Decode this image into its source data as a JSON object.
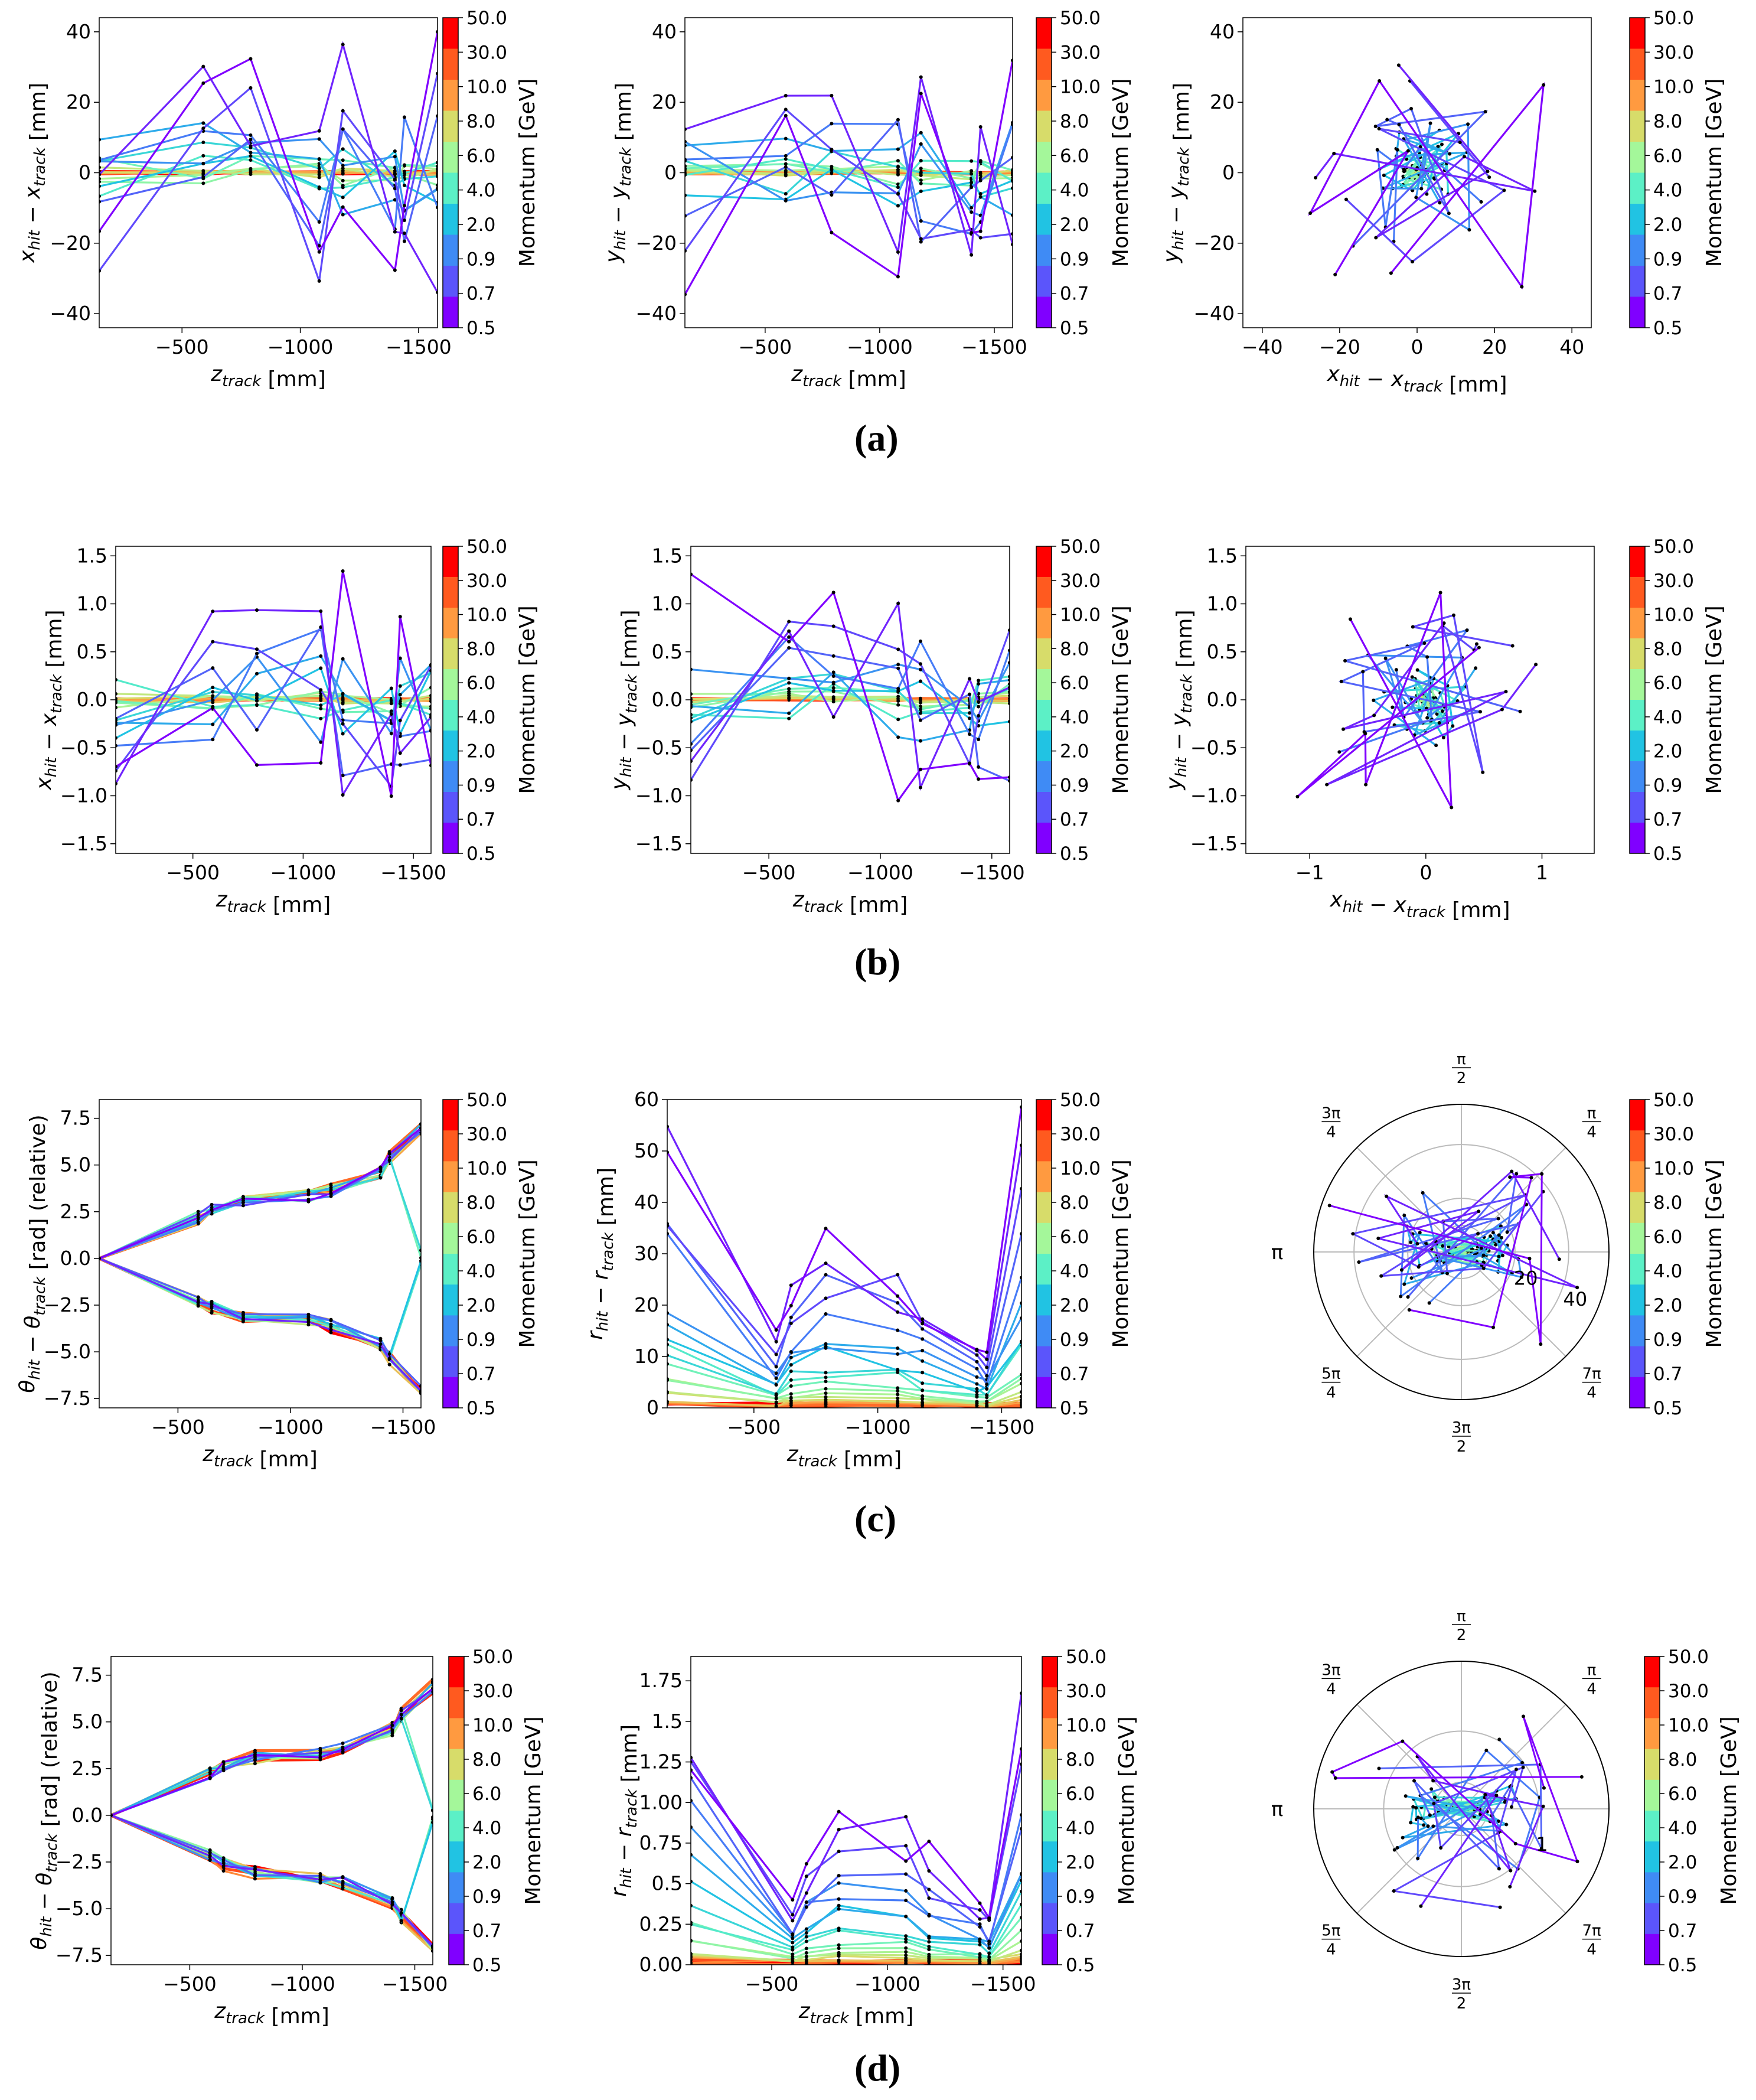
{
  "figure": {
    "rows": [
      {
        "label": "a",
        "label_text": "(a)"
      },
      {
        "label": "b",
        "label_text": "(b)"
      },
      {
        "label": "c",
        "label_text": "(c)"
      },
      {
        "label": "d",
        "label_text": "(d)"
      }
    ]
  },
  "colorbar": {
    "title": "Momentum [GeV]",
    "ticks": [
      "50.0",
      "30.0",
      "10.0",
      "8.0",
      "6.0",
      "4.0",
      "2.0",
      "0.9",
      "0.7",
      "0.5"
    ],
    "colors": [
      "#ff0000",
      "#ff5a1f",
      "#ff9a40",
      "#d7dc6a",
      "#a4f79a",
      "#5cf0c6",
      "#21c3e3",
      "#3f8bf5",
      "#5b55fb",
      "#8000ff"
    ]
  },
  "chart_data": [
    {
      "id": "a1",
      "type": "line",
      "panel": "row-a-left",
      "xlabel": "z_track [mm]",
      "ylabel": "x_hit − x_track [mm]",
      "xlim": [
        -150,
        -1580
      ],
      "ylim": [
        -44,
        44
      ],
      "xticks": [
        -500,
        -1000,
        -1500
      ],
      "yticks": [
        40,
        20,
        0,
        -20,
        -40
      ],
      "z": [
        -150,
        -590,
        -790,
        -1080,
        -1180,
        -1400,
        -1440,
        -1580
      ],
      "amplitude": 42,
      "symmetric": true
    },
    {
      "id": "a2",
      "type": "line",
      "panel": "row-a-middle",
      "xlabel": "z_track [mm]",
      "ylabel": "y_hit − y_track [mm]",
      "xlim": [
        -150,
        -1580
      ],
      "ylim": [
        -44,
        44
      ],
      "xticks": [
        -500,
        -1000,
        -1500
      ],
      "yticks": [
        40,
        20,
        0,
        -20,
        -40
      ],
      "z": [
        -150,
        -590,
        -790,
        -1080,
        -1180,
        -1400,
        -1440,
        -1580
      ],
      "amplitude": 35,
      "symmetric": true
    },
    {
      "id": "a3",
      "type": "scatter-line",
      "panel": "row-a-right",
      "xlabel": "x_hit − x_track [mm]",
      "ylabel": "y_hit − y_track [mm]",
      "xlim": [
        -45,
        45
      ],
      "ylim": [
        -44,
        44
      ],
      "xticks": [
        -40,
        -20,
        0,
        20,
        40
      ],
      "yticks": [
        40,
        20,
        0,
        -20,
        -40
      ],
      "amplitude": 35
    },
    {
      "id": "b1",
      "type": "line",
      "panel": "row-b-left",
      "xlabel": "z_track [mm]",
      "ylabel": "x_hit − x_track [mm]",
      "xlim": [
        -150,
        -1580
      ],
      "ylim": [
        -1.6,
        1.6
      ],
      "xticks": [
        -500,
        -1000,
        -1500
      ],
      "yticks": [
        1.5,
        1.0,
        0.5,
        0.0,
        -0.5,
        -1.0,
        -1.5
      ],
      "z": [
        -150,
        -590,
        -790,
        -1080,
        -1180,
        -1400,
        -1440,
        -1580
      ],
      "amplitude": 1.45,
      "symmetric": true
    },
    {
      "id": "b2",
      "type": "line",
      "panel": "row-b-middle",
      "xlabel": "z_track [mm]",
      "ylabel": "y_hit − y_track [mm]",
      "xlim": [
        -150,
        -1580
      ],
      "ylim": [
        -1.6,
        1.6
      ],
      "xticks": [
        -500,
        -1000,
        -1500
      ],
      "yticks": [
        1.5,
        1.0,
        0.5,
        0.0,
        -0.5,
        -1.0,
        -1.5
      ],
      "z": [
        -150,
        -590,
        -790,
        -1080,
        -1180,
        -1400,
        -1440,
        -1580
      ],
      "amplitude": 1.35,
      "symmetric": true
    },
    {
      "id": "b3",
      "type": "scatter-line",
      "panel": "row-b-right",
      "xlabel": "x_hit − x_track [mm]",
      "ylabel": "y_hit − y_track [mm]",
      "xlim": [
        -1.55,
        1.45
      ],
      "ylim": [
        -1.6,
        1.6
      ],
      "xticks": [
        -1,
        0,
        1
      ],
      "yticks": [
        1.5,
        1.0,
        0.5,
        0.0,
        -0.5,
        -1.0,
        -1.5
      ],
      "amplitude": 1.3
    },
    {
      "id": "c1",
      "type": "line",
      "panel": "row-c-left",
      "xlabel": "z_track [mm]",
      "ylabel": "θ_hit − θ_track [rad] (relative)",
      "xlim": [
        -150,
        -1580
      ],
      "ylim": [
        -8,
        8.5
      ],
      "xticks": [
        -500,
        -1000,
        -1500
      ],
      "yticks": [
        7.5,
        5.0,
        2.5,
        0.0,
        -2.5,
        -5.0,
        -7.5
      ],
      "z": [
        -150,
        -590,
        -650,
        -790,
        -1080,
        -1180,
        -1400,
        -1440,
        -1580
      ],
      "theta": true
    },
    {
      "id": "c2",
      "type": "line",
      "panel": "row-c-middle",
      "xlabel": "z_track [mm]",
      "ylabel": "r_hit − r_track [mm]",
      "xlim": [
        -150,
        -1580
      ],
      "ylim": [
        0,
        60
      ],
      "xticks": [
        -500,
        -1000,
        -1500
      ],
      "yticks": [
        60,
        50,
        40,
        30,
        20,
        10,
        0
      ],
      "z": [
        -150,
        -590,
        -650,
        -790,
        -1080,
        -1180,
        -1400,
        -1440,
        -1580
      ],
      "amplitude": 54
    },
    {
      "id": "c3",
      "type": "polar",
      "panel": "row-c-right",
      "rmax": 55,
      "rticks": [
        "20",
        "40"
      ],
      "angle_labels": [
        "π/2",
        "π/4",
        "3π/4",
        "π",
        "5π/4",
        "3π/2",
        "7π/4"
      ]
    },
    {
      "id": "d1",
      "type": "line",
      "panel": "row-d-left",
      "xlabel": "z_track [mm]",
      "ylabel": "θ_hit − θ_track [rad] (relative)",
      "xlim": [
        -150,
        -1580
      ],
      "ylim": [
        -8,
        8.5
      ],
      "xticks": [
        -500,
        -1000,
        -1500
      ],
      "yticks": [
        7.5,
        5.0,
        2.5,
        0.0,
        -2.5,
        -5.0,
        -7.5
      ],
      "z": [
        -150,
        -590,
        -650,
        -790,
        -1080,
        -1180,
        -1400,
        -1440,
        -1580
      ],
      "theta": true
    },
    {
      "id": "d2",
      "type": "line",
      "panel": "row-d-middle",
      "xlabel": "z_track [mm]",
      "ylabel": "r_hit − r_track [mm]",
      "xlim": [
        -150,
        -1580
      ],
      "ylim": [
        0,
        1.9
      ],
      "xticks": [
        -500,
        -1000,
        -1500
      ],
      "yticks": [
        1.75,
        1.5,
        1.25,
        1.0,
        0.75,
        0.5,
        0.25,
        0.0
      ],
      "z": [
        -150,
        -590,
        -650,
        -790,
        -1080,
        -1180,
        -1400,
        -1440,
        -1580
      ],
      "amplitude": 1.62
    },
    {
      "id": "d3",
      "type": "polar",
      "panel": "row-d-right",
      "rmax": 1.9,
      "rticks": [
        "1"
      ],
      "angle_labels": [
        "π/2",
        "π/4",
        "3π/4",
        "π",
        "5π/4",
        "3π/2",
        "7π/4"
      ]
    }
  ]
}
